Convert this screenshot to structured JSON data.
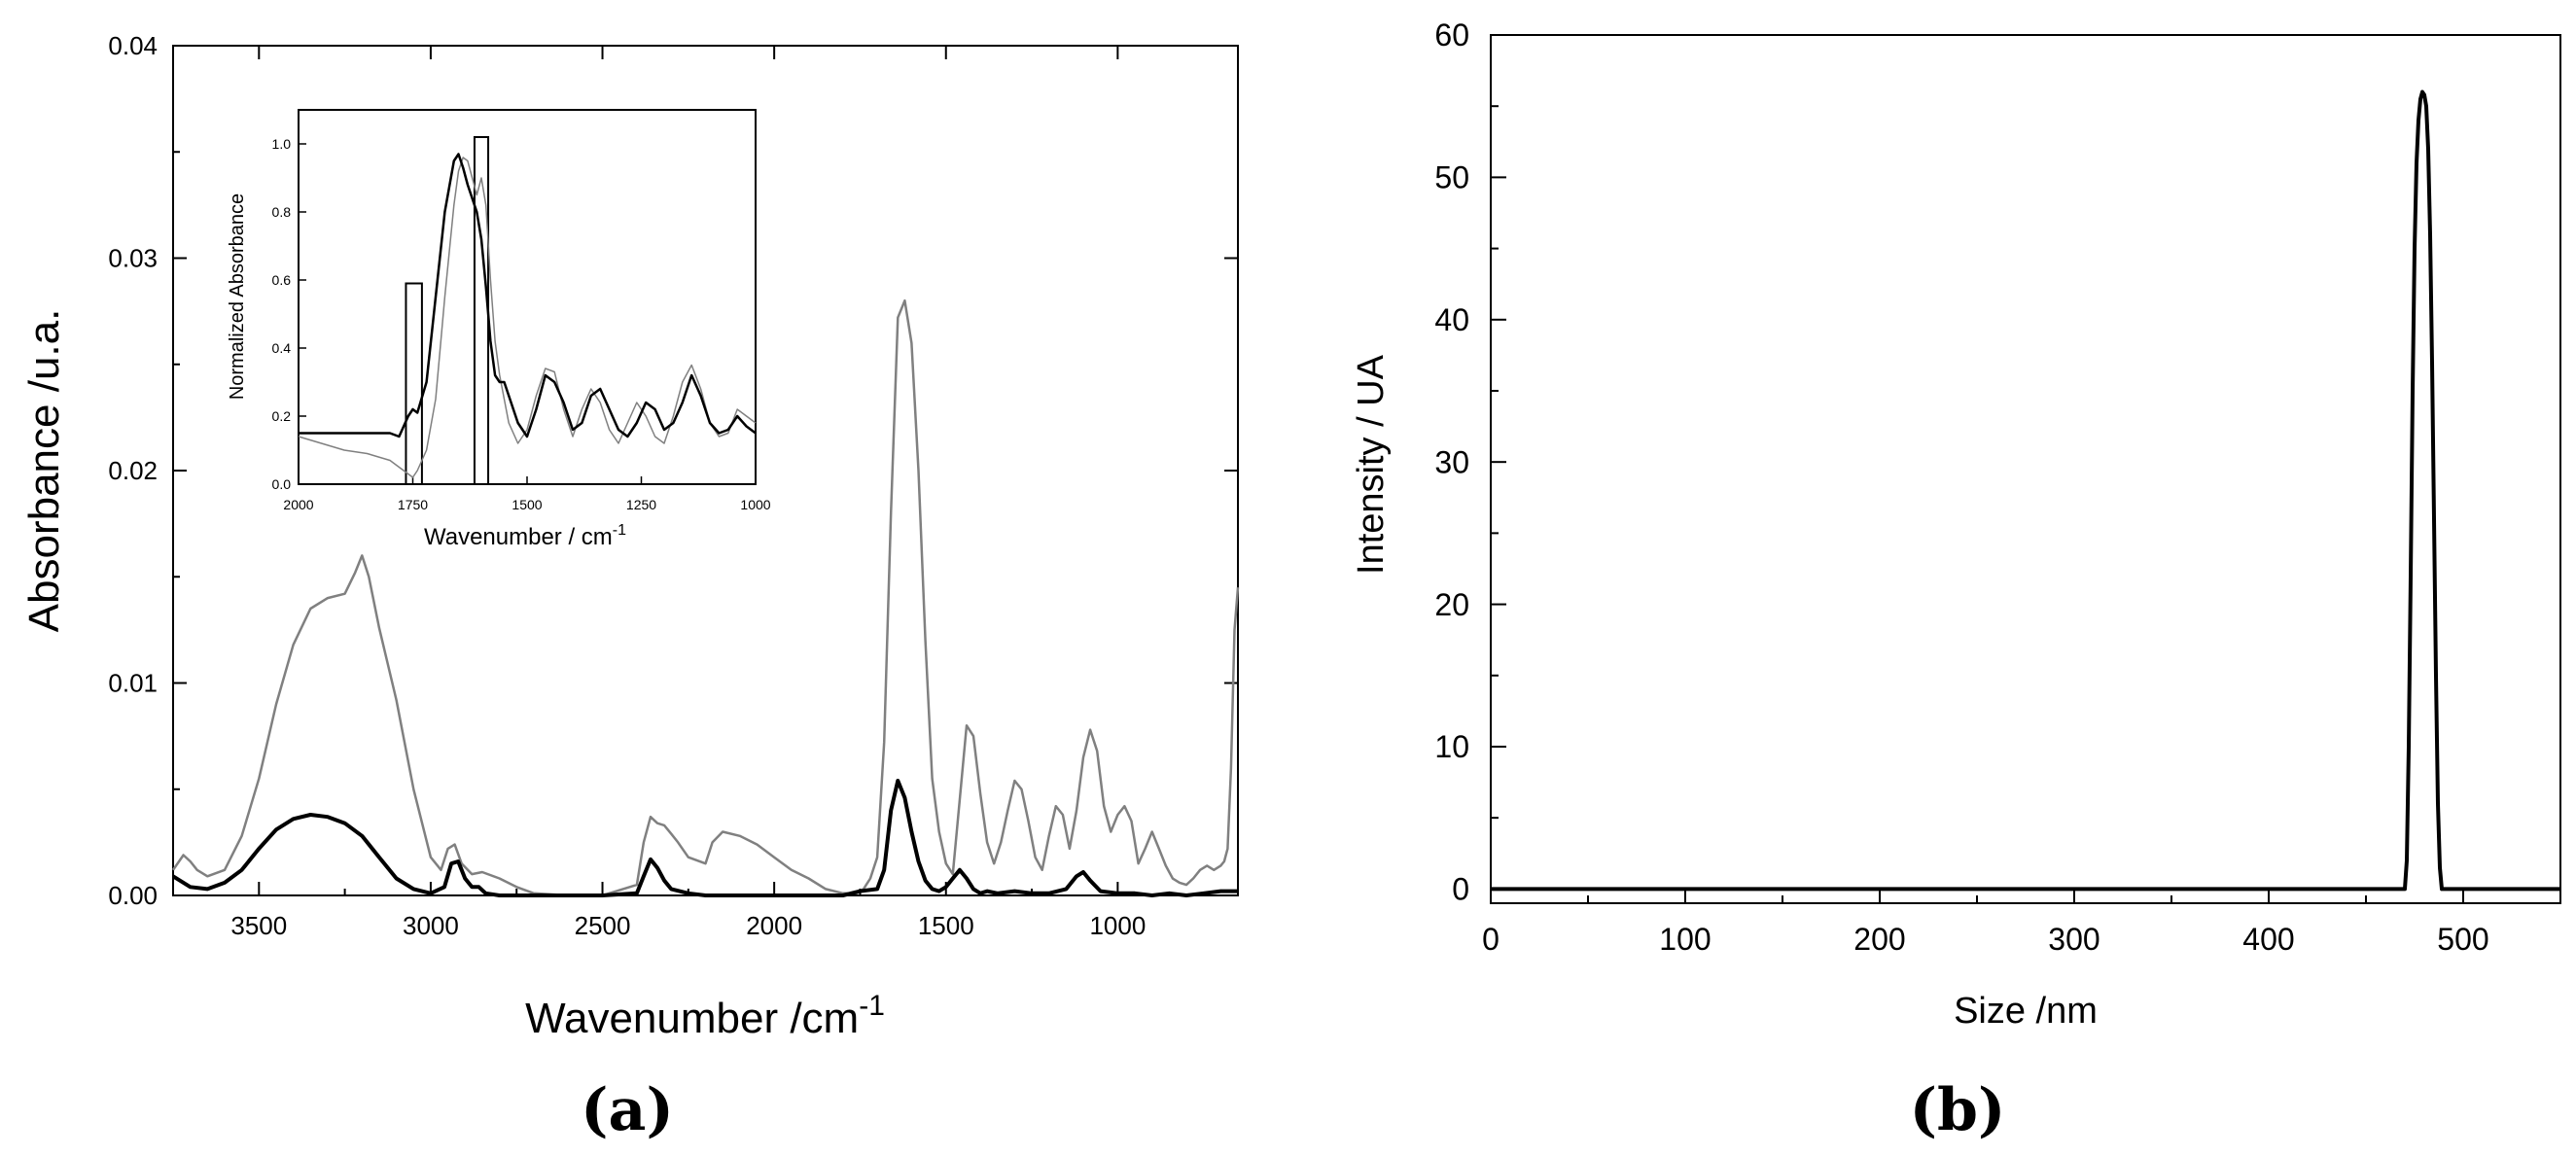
{
  "chart_data": [
    {
      "panel": "(a)",
      "type": "line",
      "xlabel": "Wavenumber /cm",
      "xlabel_sup": "-1",
      "ylabel": "Absorbance /u.a.",
      "xlim": [
        3750,
        650
      ],
      "ylim": [
        0,
        0.04
      ],
      "x_reversed": true,
      "x_ticks": [
        "3500",
        "3000",
        "2500",
        "2000",
        "1500",
        "1000"
      ],
      "x_tick_values": [
        3500,
        3000,
        2500,
        2000,
        1500,
        1000
      ],
      "y_ticks": [
        "0.00",
        "0.01",
        "0.02",
        "0.03",
        "0.04"
      ],
      "y_tick_values": [
        0,
        0.01,
        0.02,
        0.03,
        0.04
      ],
      "series": [
        {
          "color": "#808080",
          "style": "solid",
          "x": [
            3750,
            3720,
            3700,
            3680,
            3650,
            3600,
            3550,
            3500,
            3450,
            3400,
            3350,
            3300,
            3250,
            3220,
            3200,
            3180,
            3150,
            3100,
            3050,
            3000,
            2970,
            2950,
            2930,
            2910,
            2880,
            2850,
            2800,
            2750,
            2700,
            2600,
            2500,
            2400,
            2380,
            2360,
            2340,
            2320,
            2300,
            2280,
            2250,
            2200,
            2180,
            2150,
            2100,
            2050,
            2000,
            1950,
            1900,
            1850,
            1800,
            1760,
            1740,
            1720,
            1700,
            1680,
            1660,
            1640,
            1620,
            1600,
            1580,
            1560,
            1540,
            1520,
            1500,
            1480,
            1460,
            1440,
            1420,
            1400,
            1380,
            1360,
            1340,
            1320,
            1300,
            1280,
            1260,
            1240,
            1220,
            1200,
            1180,
            1160,
            1140,
            1120,
            1100,
            1080,
            1060,
            1040,
            1020,
            1000,
            980,
            960,
            940,
            920,
            900,
            880,
            860,
            840,
            820,
            800,
            780,
            760,
            740,
            720,
            700,
            690,
            680,
            670,
            660,
            650
          ],
          "y": [
            0.0012,
            0.0019,
            0.0016,
            0.0012,
            0.0009,
            0.0012,
            0.0028,
            0.0055,
            0.009,
            0.0118,
            0.0135,
            0.014,
            0.0142,
            0.0152,
            0.016,
            0.015,
            0.0126,
            0.0092,
            0.005,
            0.0018,
            0.0012,
            0.0022,
            0.0024,
            0.0015,
            0.001,
            0.0011,
            0.0008,
            0.0004,
            0.0001,
            0.0,
            0.0,
            0.0005,
            0.0025,
            0.0037,
            0.0034,
            0.0033,
            0.0029,
            0.0025,
            0.0018,
            0.0015,
            0.0025,
            0.003,
            0.0028,
            0.0024,
            0.0018,
            0.0012,
            0.0008,
            0.0003,
            0.0001,
            0.0001,
            0.0003,
            0.0008,
            0.0018,
            0.0072,
            0.018,
            0.0272,
            0.028,
            0.026,
            0.02,
            0.012,
            0.0055,
            0.003,
            0.0015,
            0.001,
            0.0045,
            0.008,
            0.0075,
            0.0048,
            0.0025,
            0.0015,
            0.0025,
            0.004,
            0.0054,
            0.005,
            0.0035,
            0.0018,
            0.0012,
            0.0028,
            0.0042,
            0.0038,
            0.0022,
            0.004,
            0.0065,
            0.0078,
            0.0068,
            0.0042,
            0.003,
            0.0038,
            0.0042,
            0.0035,
            0.0015,
            0.0022,
            0.003,
            0.0022,
            0.0014,
            0.0008,
            0.0006,
            0.0005,
            0.0008,
            0.0012,
            0.0014,
            0.0012,
            0.0014,
            0.0016,
            0.0022,
            0.006,
            0.0125,
            0.0145
          ]
        },
        {
          "color": "#000000",
          "style": "solid",
          "x": [
            3750,
            3700,
            3650,
            3600,
            3550,
            3500,
            3450,
            3400,
            3350,
            3300,
            3250,
            3200,
            3150,
            3100,
            3050,
            3000,
            2960,
            2940,
            2920,
            2900,
            2880,
            2860,
            2840,
            2800,
            2700,
            2600,
            2500,
            2400,
            2380,
            2360,
            2340,
            2320,
            2300,
            2250,
            2200,
            2100,
            2000,
            1900,
            1800,
            1750,
            1700,
            1680,
            1660,
            1640,
            1620,
            1600,
            1580,
            1560,
            1540,
            1520,
            1500,
            1480,
            1460,
            1440,
            1420,
            1400,
            1380,
            1350,
            1300,
            1250,
            1200,
            1150,
            1120,
            1100,
            1080,
            1050,
            1000,
            950,
            900,
            850,
            800,
            750,
            700,
            650
          ],
          "y": [
            0.0009,
            0.0004,
            0.0003,
            0.0006,
            0.0012,
            0.0022,
            0.0031,
            0.0036,
            0.0038,
            0.0037,
            0.0034,
            0.0028,
            0.0018,
            0.0008,
            0.0003,
            0.0001,
            0.0004,
            0.0015,
            0.0016,
            0.0008,
            0.0004,
            0.0004,
            0.0001,
            0.0,
            0.0,
            0.0,
            0.0,
            0.0001,
            0.0009,
            0.0017,
            0.0013,
            0.0007,
            0.0003,
            0.0001,
            0.0,
            0.0,
            0.0,
            0.0,
            0.0,
            0.0002,
            0.0003,
            0.0012,
            0.004,
            0.0054,
            0.0046,
            0.003,
            0.0016,
            0.0007,
            0.0003,
            0.0002,
            0.0004,
            0.0008,
            0.0012,
            0.0008,
            0.0003,
            0.0001,
            0.0002,
            0.0001,
            0.0002,
            0.0001,
            0.0001,
            0.0003,
            0.0009,
            0.0011,
            0.0007,
            0.0002,
            0.0001,
            0.0001,
            0.0,
            0.0001,
            0.0,
            0.0001,
            0.0002,
            0.0002
          ]
        }
      ],
      "inset": {
        "type": "line",
        "xlabel": "Wavenumber / cm",
        "xlabel_sup": "-1",
        "ylabel": "Normalized Absorbance",
        "xlim": [
          2000,
          1000
        ],
        "ylim": [
          0,
          1.1
        ],
        "x_ticks": [
          "2000",
          "1750",
          "1500",
          "1250",
          "1000"
        ],
        "x_tick_values": [
          2000,
          1750,
          1500,
          1250,
          1000
        ],
        "y_ticks": [
          "0.0",
          "0.2",
          "0.4",
          "0.6",
          "0.8",
          "1.0"
        ],
        "y_tick_values": [
          0,
          0.2,
          0.4,
          0.6,
          0.8,
          1.0
        ],
        "boxes": [
          {
            "x0": 1765,
            "x1": 1730,
            "y": 0.59
          },
          {
            "x0": 1615,
            "x1": 1585,
            "y": 1.02
          }
        ],
        "series": [
          {
            "color": "#808080",
            "style": "solid",
            "x": [
              2000,
              1950,
              1900,
              1850,
              1800,
              1780,
              1760,
              1750,
              1740,
              1720,
              1700,
              1680,
              1660,
              1650,
              1640,
              1630,
              1620,
              1610,
              1600,
              1590,
              1580,
              1570,
              1560,
              1550,
              1540,
              1520,
              1500,
              1480,
              1460,
              1440,
              1420,
              1400,
              1380,
              1360,
              1340,
              1320,
              1300,
              1280,
              1260,
              1240,
              1220,
              1200,
              1180,
              1160,
              1140,
              1120,
              1100,
              1080,
              1060,
              1040,
              1020,
              1000
            ],
            "y": [
              0.14,
              0.12,
              0.1,
              0.09,
              0.07,
              0.05,
              0.03,
              0.02,
              0.04,
              0.1,
              0.25,
              0.55,
              0.82,
              0.92,
              0.96,
              0.95,
              0.9,
              0.85,
              0.9,
              0.82,
              0.6,
              0.42,
              0.32,
              0.25,
              0.18,
              0.12,
              0.16,
              0.26,
              0.34,
              0.33,
              0.22,
              0.14,
              0.22,
              0.28,
              0.24,
              0.16,
              0.12,
              0.18,
              0.24,
              0.2,
              0.14,
              0.12,
              0.2,
              0.3,
              0.35,
              0.28,
              0.18,
              0.14,
              0.15,
              0.22,
              0.2,
              0.18
            ]
          },
          {
            "color": "#000000",
            "style": "solid",
            "x": [
              2000,
              1950,
              1900,
              1850,
              1800,
              1780,
              1760,
              1750,
              1740,
              1720,
              1700,
              1680,
              1660,
              1650,
              1640,
              1630,
              1620,
              1610,
              1600,
              1590,
              1580,
              1570,
              1560,
              1550,
              1540,
              1520,
              1500,
              1480,
              1460,
              1440,
              1420,
              1400,
              1380,
              1360,
              1340,
              1320,
              1300,
              1280,
              1260,
              1240,
              1220,
              1200,
              1180,
              1160,
              1140,
              1120,
              1100,
              1080,
              1060,
              1040,
              1020,
              1000
            ],
            "y": [
              0.15,
              0.15,
              0.15,
              0.15,
              0.15,
              0.14,
              0.2,
              0.22,
              0.21,
              0.3,
              0.55,
              0.8,
              0.95,
              0.97,
              0.93,
              0.88,
              0.84,
              0.8,
              0.72,
              0.58,
              0.42,
              0.32,
              0.3,
              0.3,
              0.26,
              0.18,
              0.14,
              0.22,
              0.32,
              0.3,
              0.24,
              0.16,
              0.18,
              0.26,
              0.28,
              0.22,
              0.16,
              0.14,
              0.18,
              0.24,
              0.22,
              0.16,
              0.18,
              0.24,
              0.32,
              0.26,
              0.18,
              0.15,
              0.16,
              0.2,
              0.17,
              0.15
            ]
          }
        ]
      }
    },
    {
      "panel": "(b)",
      "type": "line",
      "xlabel": "Size /nm",
      "ylabel": "Intensity  / UA",
      "xlim": [
        0,
        550
      ],
      "ylim": [
        -1,
        60
      ],
      "x_ticks": [
        "0",
        "100",
        "200",
        "300",
        "400",
        "500"
      ],
      "x_tick_values": [
        0,
        100,
        200,
        300,
        400,
        500
      ],
      "y_ticks": [
        "0",
        "10",
        "20",
        "30",
        "40",
        "50",
        "60"
      ],
      "y_tick_values": [
        0,
        10,
        20,
        30,
        40,
        50,
        60
      ],
      "series": [
        {
          "color": "#000000",
          "style": "solid",
          "x": [
            0,
            470,
            471,
            472,
            473,
            474,
            475,
            476,
            477,
            478,
            479,
            480,
            481,
            482,
            483,
            484,
            485,
            486,
            487,
            488,
            489,
            550
          ],
          "y": [
            0,
            0,
            2,
            10,
            22,
            35,
            45,
            51,
            54,
            55.5,
            56,
            55.8,
            55,
            52,
            46,
            37,
            26,
            15,
            6,
            1.5,
            0,
            0
          ]
        }
      ]
    }
  ],
  "labels": {
    "panel_a": "(a)",
    "panel_b": "(b)"
  }
}
